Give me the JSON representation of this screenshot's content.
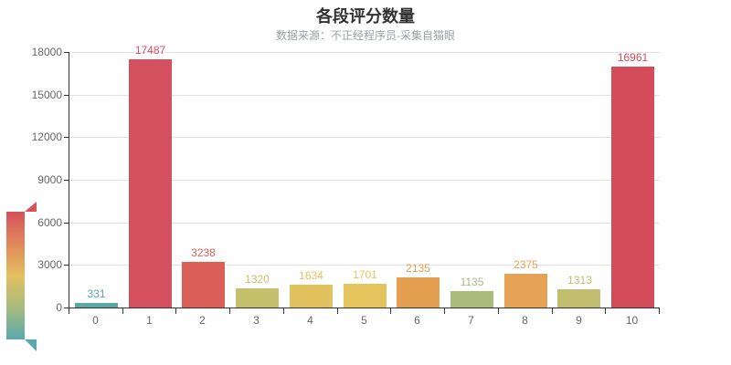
{
  "header": {
    "title": "各段评分数量",
    "subtitle": "数据来源：不正经程序员-采集自猫眼"
  },
  "chart_data": {
    "type": "bar",
    "title": "各段评分数量",
    "subtitle": "数据来源：不正经程序员-采集自猫眼",
    "categories": [
      "0",
      "1",
      "2",
      "3",
      "4",
      "5",
      "6",
      "7",
      "8",
      "9",
      "10"
    ],
    "values": [
      331,
      17487,
      3238,
      1320,
      1634,
      1701,
      2135,
      1135,
      2375,
      1313,
      16961
    ],
    "bar_colors": [
      "#5BA8A5",
      "#D5505E",
      "#DC5E58",
      "#C4C06C",
      "#E2C25F",
      "#E4C45C",
      "#E4A050",
      "#A9BC7D",
      "#E6A257",
      "#C2BE70",
      "#D44B5A"
    ],
    "xlabel": "",
    "ylabel": "",
    "ylim": [
      0,
      18000
    ],
    "y_ticks": [
      0,
      3000,
      6000,
      9000,
      12000,
      15000,
      18000
    ],
    "grid": true,
    "value_labels_on": true,
    "legend": "none",
    "visual_map": {
      "orient": "vertical",
      "position": "bottom-left",
      "gradient_top_to_bottom": [
        "#D5515D",
        "#E0885C",
        "#E3C05F",
        "#A8BC7D",
        "#58A8AE"
      ]
    }
  },
  "colors": {
    "background": "#FFFFFF",
    "title_text": "#333333",
    "subtitle_text": "#9AA0A6",
    "axis_line": "#333333",
    "axis_label": "#666666",
    "gridline": "#E0E0E6"
  }
}
